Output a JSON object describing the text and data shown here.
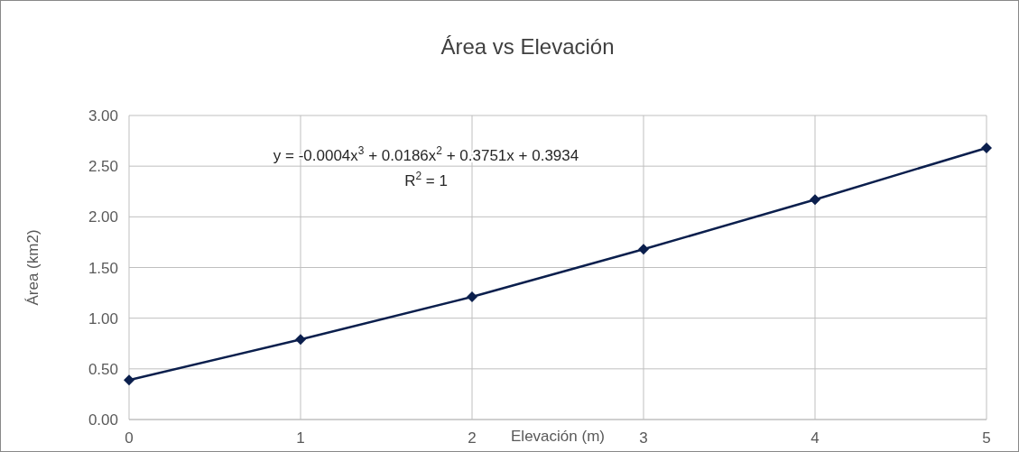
{
  "chart_data": {
    "type": "line",
    "title": "Área vs Elevación",
    "xlabel": "Elevación (m)",
    "ylabel": "Área (km2)",
    "x": [
      0,
      1,
      2,
      3,
      4,
      5
    ],
    "series": [
      {
        "color": "#0b1f4d",
        "values": [
          0.39,
          0.79,
          1.21,
          1.68,
          2.17,
          2.68
        ]
      }
    ],
    "xlim": [
      0,
      5
    ],
    "xticks": [
      0,
      1,
      2,
      3,
      4,
      5
    ],
    "ylim": [
      0,
      3
    ],
    "yticks": [
      {
        "value": 0,
        "label": "0.00"
      },
      {
        "value": 0.5,
        "label": "0.50"
      },
      {
        "value": 1,
        "label": "1.00"
      },
      {
        "value": 1.5,
        "label": "1.50"
      },
      {
        "value": 2,
        "label": "2.00"
      },
      {
        "value": 2.5,
        "label": "2.50"
      },
      {
        "value": 3,
        "label": "3.00"
      }
    ],
    "grid": true,
    "marker": "diamond",
    "line_style": "solid",
    "annotations": [
      "y = -0.0004x$^{3}$ + 0.0186x$^{2}$ + 0.3751x + 0.3934",
      "R$^{2}$ = 1"
    ]
  }
}
